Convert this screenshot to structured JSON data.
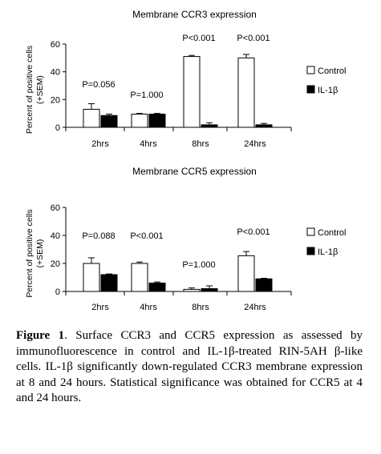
{
  "chart_data": [
    {
      "type": "bar",
      "title": "Membrane CCR3 expression",
      "ylabel": [
        "Percent of positive cells",
        "(+SEM)"
      ],
      "ylim": [
        0,
        60
      ],
      "yticks": [
        0,
        20,
        40,
        60
      ],
      "categories": [
        "2hrs",
        "4hrs",
        "8hrs",
        "24hrs"
      ],
      "series": [
        {
          "name": "Control",
          "color": "#ffffff",
          "values": [
            13,
            9.5,
            51,
            50
          ],
          "sem": [
            4,
            0.5,
            0.8,
            2.5
          ]
        },
        {
          "name": "IL-1β",
          "color": "#000000",
          "values": [
            8.5,
            9.5,
            1.8,
            1.8
          ],
          "sem": [
            1,
            0.5,
            1.5,
            1
          ]
        }
      ],
      "annotations": [
        "P=0.056",
        "P=1.000",
        "P<0.001",
        "P<0.001"
      ],
      "legend": "right"
    },
    {
      "type": "bar",
      "title": "Membrane CCR5 expression",
      "ylabel": [
        "Percent of positive cells",
        "(+SEM)"
      ],
      "ylim": [
        0,
        60
      ],
      "yticks": [
        0,
        20,
        40,
        60
      ],
      "categories": [
        "2hrs",
        "4hrs",
        "8hrs",
        "24hrs"
      ],
      "series": [
        {
          "name": "Control",
          "color": "#ffffff",
          "values": [
            20,
            20,
            1.5,
            25.5
          ],
          "sem": [
            4,
            1,
            1,
            3
          ]
        },
        {
          "name": "IL-1β",
          "color": "#000000",
          "values": [
            12,
            6,
            2,
            9
          ],
          "sem": [
            0.5,
            0.8,
            2,
            0.4
          ]
        }
      ],
      "annotations": [
        "P=0.088",
        "P<0.001",
        "P=1.000",
        "P<0.001"
      ],
      "legend": "right"
    }
  ],
  "caption": {
    "label": "Figure 1",
    "text": ". Surface CCR3 and CCR5 expression as assessed by immunofluorescence in control and IL-1β-treated RIN-5AH β-like cells. IL-1β significantly down-regulated CCR3 membrane expression at 8 and 24 hours. Statistical significance was obtained for CCR5 at 4 and 24 hours."
  }
}
